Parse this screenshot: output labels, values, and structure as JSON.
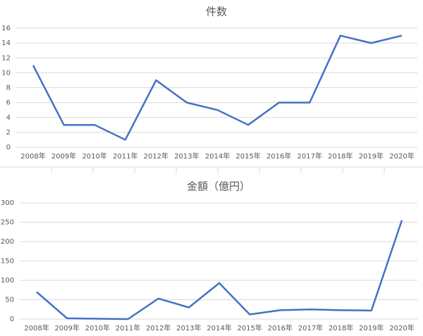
{
  "chart_data": [
    {
      "type": "line",
      "title": "件数",
      "categories": [
        "2008年",
        "2009年",
        "2010年",
        "2011年",
        "2012年",
        "2013年",
        "2014年",
        "2015年",
        "2016年",
        "2017年",
        "2018年",
        "2019年",
        "2020年"
      ],
      "series": [
        {
          "name": "件数",
          "color": "#4472c4",
          "values": [
            11,
            3,
            3,
            1,
            9,
            6,
            5,
            3,
            6,
            6,
            15,
            14,
            15
          ]
        }
      ],
      "ylim": [
        0,
        16
      ],
      "yticks": [
        0,
        2,
        4,
        6,
        8,
        10,
        12,
        14,
        16
      ],
      "grid": true
    },
    {
      "type": "line",
      "title": "金額（億円）",
      "categories": [
        "2008年",
        "2009年",
        "2010年",
        "2011年",
        "2012年",
        "2013年",
        "2014年",
        "2015年",
        "2016年",
        "2017年",
        "2018年",
        "2019年",
        "2020年"
      ],
      "series": [
        {
          "name": "金額（億円）",
          "color": "#4472c4",
          "values": [
            70,
            2,
            1,
            0,
            53,
            30,
            93,
            12,
            23,
            25,
            23,
            22,
            255
          ]
        }
      ],
      "ylim": [
        0,
        300
      ],
      "yticks": [
        0,
        50,
        100,
        150,
        200,
        250,
        300
      ],
      "grid": true
    }
  ]
}
